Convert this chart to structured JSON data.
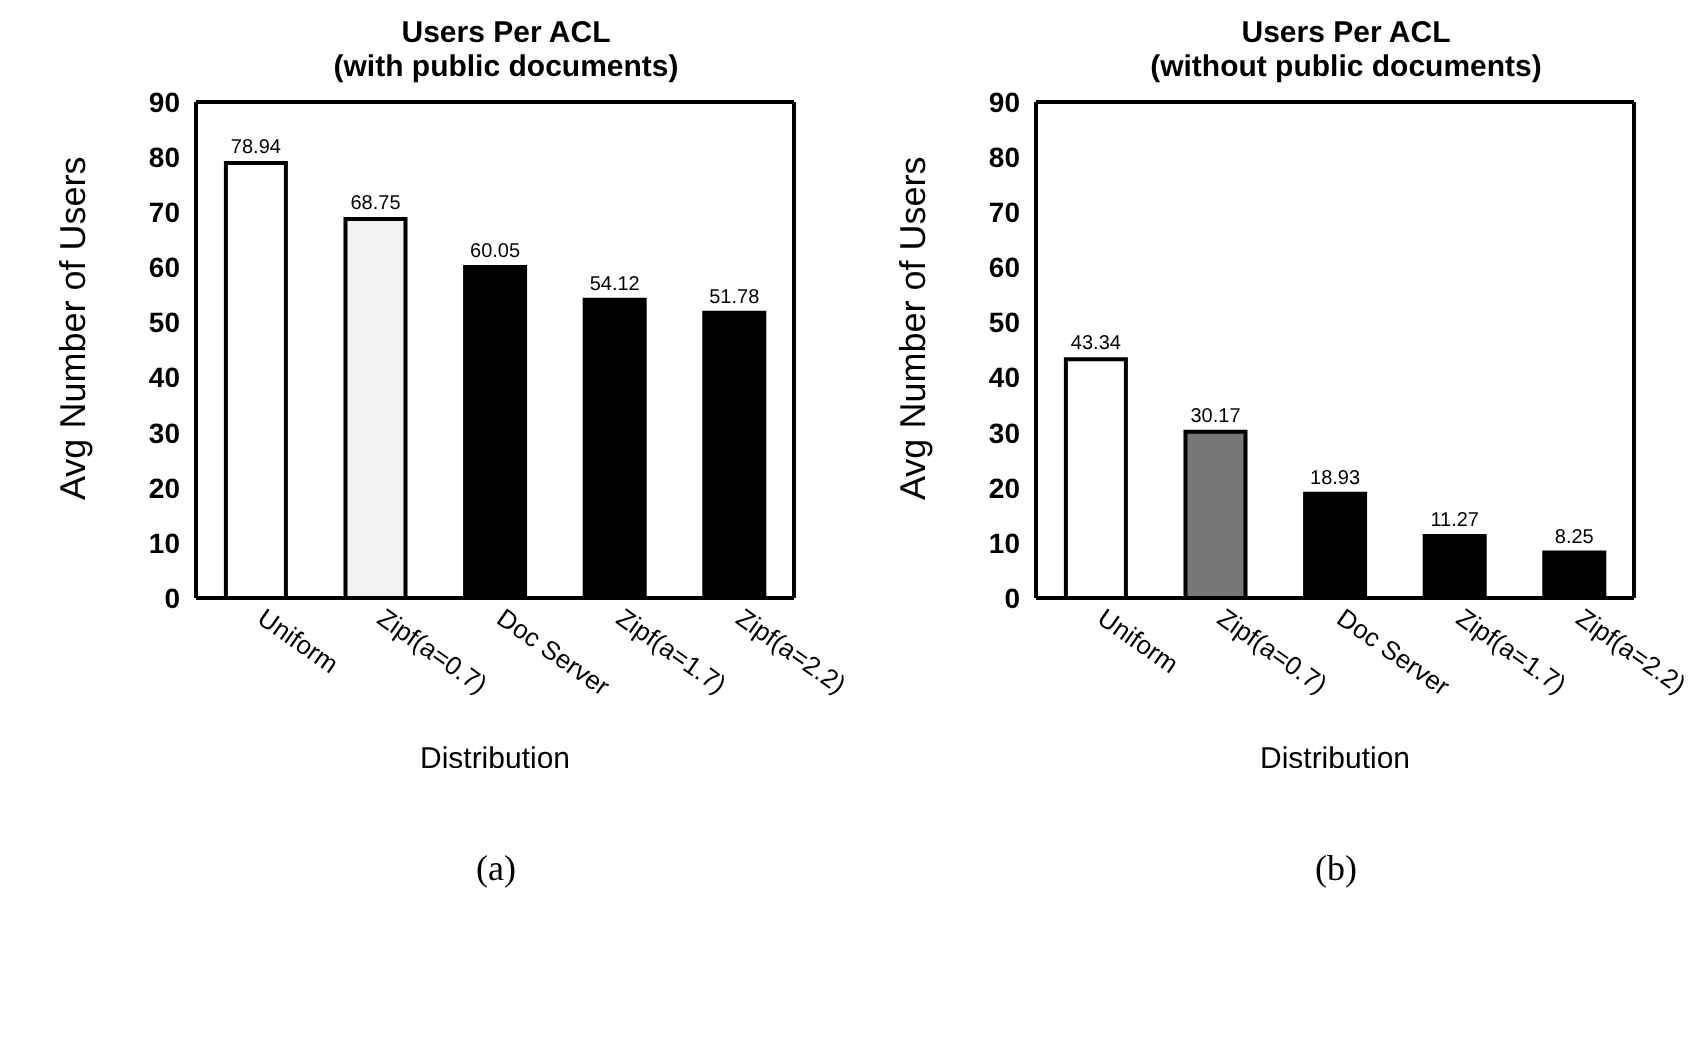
{
  "chart_data": [
    {
      "type": "bar",
      "title": "Users Per ACL\n(with public documents)",
      "xlabel": "Distribution",
      "ylabel": "Avg Number of Users",
      "categories": [
        "Uniform",
        "Zipf(a=0.7)",
        "Doc Server",
        "Zipf(a=1.7)",
        "Zipf(a=2.2)"
      ],
      "values": [
        78.94,
        68.75,
        60.05,
        54.12,
        51.78
      ],
      "colors": [
        "#ffffff",
        "#f2f2f2",
        "#000000",
        "#000000",
        "#000000"
      ],
      "ylim": [
        0,
        90
      ],
      "yticks": [
        0,
        10,
        20,
        30,
        40,
        50,
        60,
        70,
        80,
        90
      ],
      "data_labels": true,
      "grid": false,
      "legend": false,
      "annotations": [
        "(a)"
      ]
    },
    {
      "type": "bar",
      "title": "Users Per ACL\n(without public documents)",
      "xlabel": "Distribution",
      "ylabel": "Avg Number of Users",
      "categories": [
        "Uniform",
        "Zipf(a=0.7)",
        "Doc Server",
        "Zipf(a=1.7)",
        "Zipf(a=2.2)"
      ],
      "values": [
        43.34,
        30.17,
        18.93,
        11.27,
        8.25
      ],
      "colors": [
        "#ffffff",
        "#777777",
        "#000000",
        "#000000",
        "#000000"
      ],
      "ylim": [
        0,
        90
      ],
      "yticks": [
        0,
        10,
        20,
        30,
        40,
        50,
        60,
        70,
        80,
        90
      ],
      "data_labels": true,
      "grid": false,
      "legend": false,
      "annotations": [
        "(b)"
      ]
    }
  ]
}
